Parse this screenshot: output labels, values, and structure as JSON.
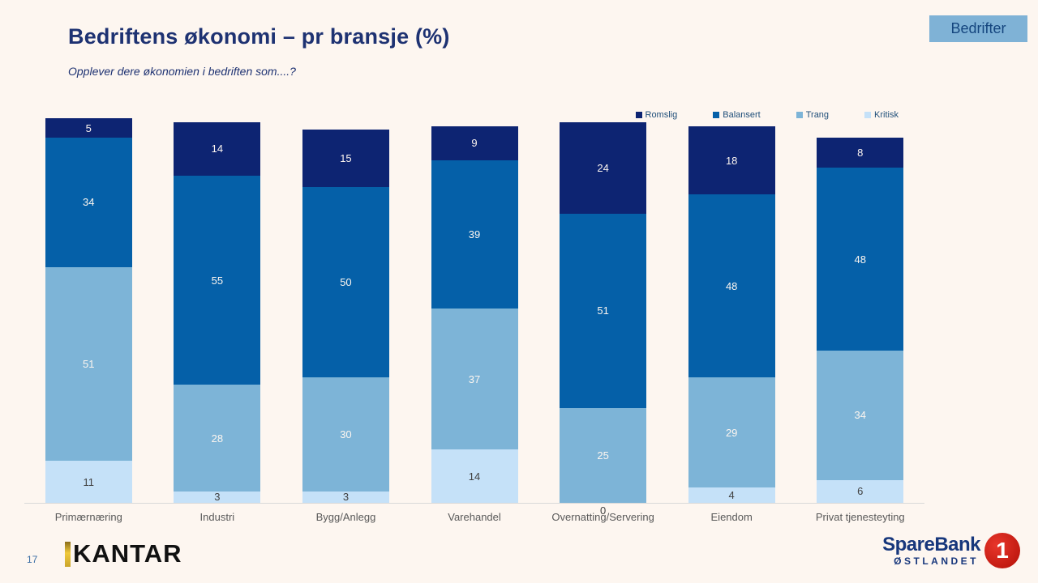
{
  "page": {
    "number": "17",
    "corner_tag": "Bedrifter"
  },
  "chart_data": {
    "type": "bar",
    "stacked": true,
    "orientation": "vertical",
    "title": "Bedriftens økonomi – pr bransje (%)",
    "subtitle": "Opplever dere økonomien i bedriften som....?",
    "unit": "%",
    "legend_position": "top-right",
    "grid": false,
    "categories": [
      "Primærnæring",
      "Industri",
      "Bygg/Anlegg",
      "Varehandel",
      "Overnatting/Servering",
      "Eiendom",
      "Privat tjenesteyting"
    ],
    "series": [
      {
        "name": "Romslig",
        "color": "#0d2472",
        "label_color": "#fdf6f0",
        "values": [
          5,
          14,
          15,
          9,
          24,
          18,
          8
        ]
      },
      {
        "name": "Balansert",
        "color": "#0560a8",
        "label_color": "#fdf6f0",
        "values": [
          34,
          55,
          50,
          39,
          51,
          48,
          48
        ]
      },
      {
        "name": "Trang",
        "color": "#7db4d7",
        "label_color": "#fdf6f0",
        "values": [
          51,
          28,
          30,
          37,
          25,
          29,
          34
        ]
      },
      {
        "name": "Kritisk",
        "color": "#c5e1f8",
        "label_color": "#404040",
        "values": [
          11,
          3,
          3,
          14,
          0,
          4,
          6
        ]
      }
    ]
  },
  "colors": {
    "background": "#fdf6f0",
    "title_text": "#1e3272",
    "tag_background": "#7fb2d6",
    "tag_text": "#14457e",
    "axis_line": "#d9d9d9",
    "category_label": "#595959",
    "legend_text": "#1f4e79",
    "page_number": "#3a6ea5",
    "kantar_black": "#111111",
    "kantar_gold": "#e0b42f",
    "sparebank_navy": "#17377c",
    "sparebank_red": "#d6221a"
  },
  "footer": {
    "kantar_logo": "KANTAR",
    "sparebank_name": "SpareBank",
    "sparebank_region": "ØSTLANDET",
    "sparebank_badge": "1"
  }
}
